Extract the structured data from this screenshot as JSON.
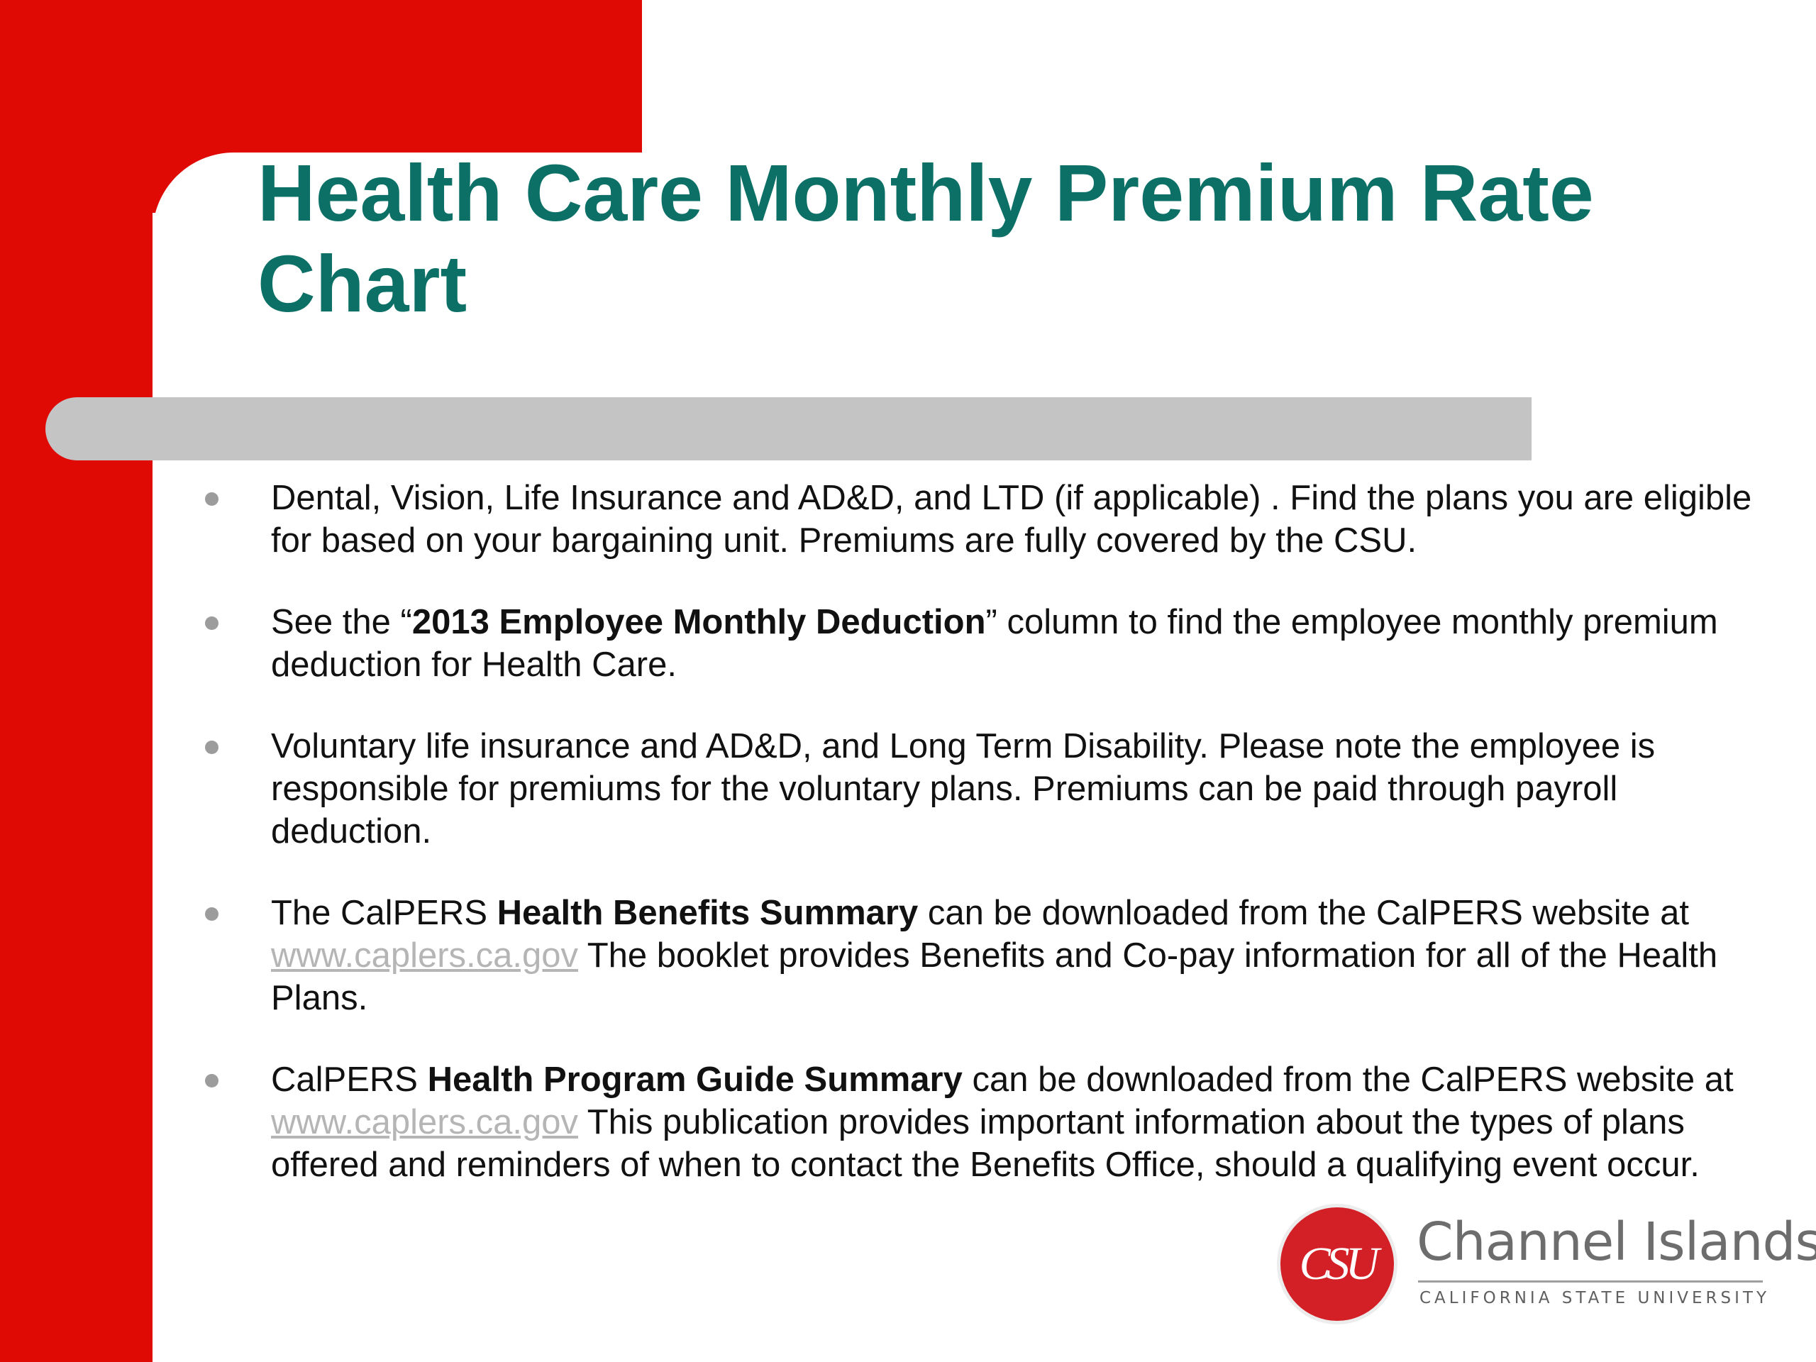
{
  "slide": {
    "title": "Health Care Monthly Premium Rate Chart",
    "bullets": [
      {
        "text": "Dental, Vision, Life Insurance and AD&D, and LTD (if applicable) .  Find the plans you are eligible for based on your bargaining unit. Premiums are fully covered by the CSU."
      },
      {
        "pre": "See the “",
        "bold": "2013 Employee Monthly Deduction",
        "post": "” column to find the employee monthly premium deduction for Health Care."
      },
      {
        "text": "Voluntary life insurance and AD&D, and Long Term Disability.  Please note the employee is responsible for premiums for the voluntary plans.  Premiums can be paid through payroll deduction."
      },
      {
        "pre": "The CalPERS ",
        "bold": "Health Benefits Summary",
        "mid": " can be downloaded from the CalPERS website at ",
        "link": "www.caplers.ca.gov",
        "post": "   The booklet provides Benefits and Co-pay information for all of the Health Plans."
      },
      {
        "pre": "CalPERS ",
        "bold": "Health Program Guide Summary",
        "mid": " can be downloaded from the CalPERS website at ",
        "link": "www.caplers.ca.gov",
        "post": "  This publication provides important information about the types of plans offered and reminders of when to contact the Benefits Office, should a qualifying event occur."
      }
    ]
  },
  "logo": {
    "seal_text": "CSU",
    "name": "Channel Islands",
    "subtitle": "CALIFORNIA STATE UNIVERSITY"
  },
  "colors": {
    "accent_red": "#e00a05",
    "title_teal": "#0c7066",
    "bar_gray": "#c4c4c4",
    "link_gray": "#b5b5b5"
  }
}
